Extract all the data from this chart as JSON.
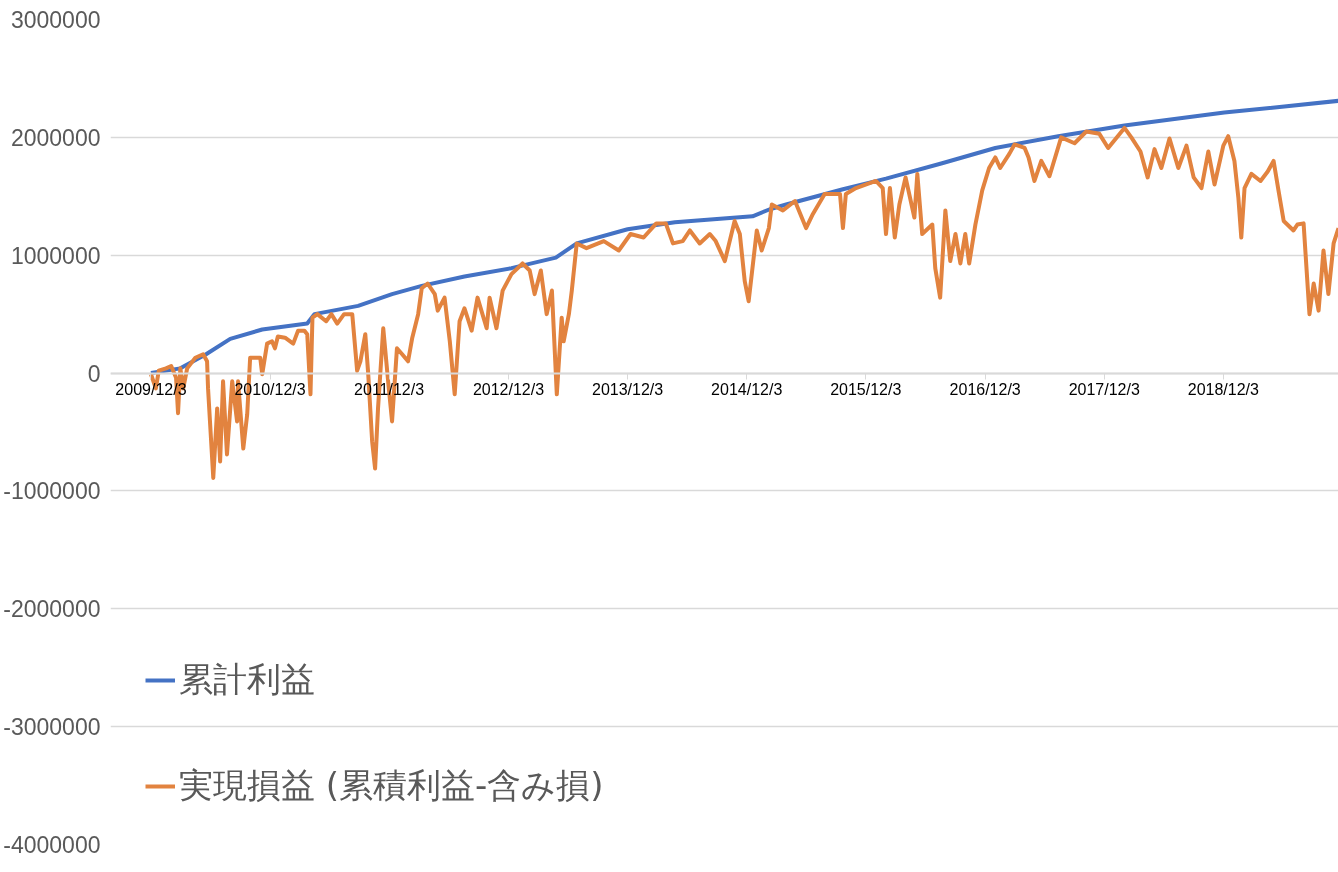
{
  "chart_data": {
    "type": "line",
    "xlim": [
      "2009-08-01",
      "2019-11-21"
    ],
    "ylim": [
      -4000000,
      3000000
    ],
    "xticks": [
      {
        "value": "2009-12-03",
        "label": "2009/12/3"
      },
      {
        "value": "2010-12-03",
        "label": "2010/12/3"
      },
      {
        "value": "2011-12-03",
        "label": "2011/12/3"
      },
      {
        "value": "2012-12-03",
        "label": "2012/12/3"
      },
      {
        "value": "2013-12-03",
        "label": "2013/12/3"
      },
      {
        "value": "2014-12-03",
        "label": "2014/12/3"
      },
      {
        "value": "2015-12-03",
        "label": "2015/12/3"
      },
      {
        "value": "2016-12-03",
        "label": "2016/12/3"
      },
      {
        "value": "2017-12-03",
        "label": "2017/12/3"
      },
      {
        "value": "2018-12-03",
        "label": "2018/12/3"
      }
    ],
    "yticks": [
      -4000000,
      -3000000,
      -2000000,
      -1000000,
      0,
      1000000,
      2000000,
      3000000
    ],
    "grid": "y",
    "legend": "bottom left",
    "series": [
      {
        "name": "累計利益",
        "color": "#4472c4",
        "x": [
          "2009-12-03",
          "2010-03-03",
          "2010-05-21",
          "2010-08-03",
          "2010-11-09",
          "2011-03-27",
          "2011-04-18",
          "2011-08-30",
          "2011-12-12",
          "2012-03-12",
          "2012-07-21",
          "2012-12-12",
          "2013-04-27",
          "2013-06-30",
          "2013-12-03",
          "2014-04-27",
          "2014-12-21",
          "2015-02-12",
          "2015-04-03",
          "2015-09-24",
          "2016-02-03",
          "2016-07-24",
          "2017-01-03",
          "2017-07-15",
          "2018-02-03",
          "2018-12-06",
          "2019-11-21"
        ],
        "values": [
          0,
          40000,
          160000,
          290000,
          370000,
          420000,
          500000,
          570000,
          670000,
          740000,
          820000,
          890000,
          980000,
          1100000,
          1220000,
          1280000,
          1330000,
          1390000,
          1430000,
          1560000,
          1650000,
          1780000,
          1910000,
          2010000,
          2100000,
          2210000,
          2310000
        ]
      },
      {
        "name": "実現損益 (累積利益-含み損)",
        "color": "#e2833f",
        "x": [
          "2009-12-03",
          "2009-12-18",
          "2009-12-27",
          "2010-01-18",
          "2010-02-03",
          "2010-02-18",
          "2010-02-24",
          "2010-03-03",
          "2010-03-12",
          "2010-03-24",
          "2010-04-18",
          "2010-05-12",
          "2010-05-24",
          "2010-05-27",
          "2010-06-12",
          "2010-06-24",
          "2010-07-03",
          "2010-07-12",
          "2010-07-24",
          "2010-08-09",
          "2010-08-24",
          "2010-08-27",
          "2010-09-12",
          "2010-09-24",
          "2010-10-03",
          "2010-11-03",
          "2010-11-09",
          "2010-11-24",
          "2010-12-09",
          "2010-12-18",
          "2010-12-27",
          "2011-01-18",
          "2011-02-12",
          "2011-02-27",
          "2011-03-18",
          "2011-03-27",
          "2011-04-06",
          "2011-04-12",
          "2011-04-27",
          "2011-05-24",
          "2011-06-09",
          "2011-06-27",
          "2011-07-18",
          "2011-08-12",
          "2011-08-27",
          "2011-09-06",
          "2011-09-21",
          "2011-09-30",
          "2011-10-12",
          "2011-10-21",
          "2011-10-30",
          "2011-11-15",
          "2011-11-30",
          "2011-12-12",
          "2011-12-27",
          "2012-01-12",
          "2012-01-30",
          "2012-02-12",
          "2012-03-01",
          "2012-03-12",
          "2012-03-30",
          "2012-04-21",
          "2012-04-30",
          "2012-05-21",
          "2012-06-06",
          "2012-06-21",
          "2012-07-06",
          "2012-07-21",
          "2012-08-12",
          "2012-08-30",
          "2012-09-27",
          "2012-10-06",
          "2012-10-27",
          "2012-11-15",
          "2012-12-12",
          "2013-01-15",
          "2013-02-06",
          "2013-02-21",
          "2013-03-12",
          "2013-03-30",
          "2013-04-15",
          "2013-04-30",
          "2013-05-15",
          "2013-05-21",
          "2013-06-06",
          "2013-06-15",
          "2013-06-30",
          "2013-07-30",
          "2013-09-21",
          "2013-11-06",
          "2013-12-12",
          "2014-01-21",
          "2014-03-01",
          "2014-03-30",
          "2014-04-21",
          "2014-05-21",
          "2014-06-12",
          "2014-07-12",
          "2014-08-12",
          "2014-08-30",
          "2014-09-27",
          "2014-10-27",
          "2014-11-12",
          "2014-11-27",
          "2014-12-09",
          "2015-01-03",
          "2015-01-18",
          "2015-02-09",
          "2015-02-18",
          "2015-03-24",
          "2015-04-30",
          "2015-06-03",
          "2015-06-24",
          "2015-07-30",
          "2015-09-15",
          "2015-09-24",
          "2015-10-03",
          "2015-11-03",
          "2016-01-03",
          "2016-01-24",
          "2016-02-03",
          "2016-02-15",
          "2016-03-01",
          "2016-03-15",
          "2016-04-03",
          "2016-04-30",
          "2016-05-09",
          "2016-05-24",
          "2016-06-24",
          "2016-07-03",
          "2016-07-18",
          "2016-08-03",
          "2016-08-18",
          "2016-09-03",
          "2016-09-18",
          "2016-10-03",
          "2016-10-15",
          "2016-11-03",
          "2016-11-24",
          "2016-12-15",
          "2017-01-03",
          "2017-01-18",
          "2017-02-15",
          "2017-03-03",
          "2017-04-03",
          "2017-04-15",
          "2017-05-03",
          "2017-05-24",
          "2017-06-18",
          "2017-07-24",
          "2017-09-03",
          "2017-10-09",
          "2017-11-18",
          "2017-12-15",
          "2018-02-03",
          "2018-02-24",
          "2018-03-24",
          "2018-04-15",
          "2018-05-06",
          "2018-05-27",
          "2018-06-21",
          "2018-07-18",
          "2018-08-12",
          "2018-09-03",
          "2018-09-27",
          "2018-10-18",
          "2018-11-06",
          "2018-12-03",
          "2018-12-18",
          "2019-01-06",
          "2019-01-18",
          "2019-01-27",
          "2019-02-06",
          "2019-02-27",
          "2019-03-27",
          "2019-04-18",
          "2019-05-06",
          "2019-05-21",
          "2019-06-06",
          "2019-07-06",
          "2019-07-18",
          "2019-08-06",
          "2019-08-24",
          "2019-09-06",
          "2019-09-21",
          "2019-10-06",
          "2019-10-21",
          "2019-11-06",
          "2019-11-21"
        ],
        "values": [
          -10000,
          -130000,
          20000,
          40000,
          60000,
          -40000,
          -340000,
          40000,
          -130000,
          40000,
          130000,
          160000,
          100000,
          -130000,
          -890000,
          -300000,
          -750000,
          -70000,
          -690000,
          -70000,
          -410000,
          -70000,
          -640000,
          -350000,
          130000,
          130000,
          -10000,
          250000,
          270000,
          210000,
          310000,
          300000,
          250000,
          360000,
          360000,
          330000,
          -180000,
          470000,
          500000,
          440000,
          500000,
          420000,
          500000,
          500000,
          20000,
          100000,
          330000,
          -10000,
          -580000,
          -810000,
          -300000,
          380000,
          -70000,
          -410000,
          210000,
          160000,
          100000,
          300000,
          500000,
          720000,
          760000,
          670000,
          530000,
          640000,
          270000,
          -180000,
          440000,
          550000,
          360000,
          640000,
          380000,
          640000,
          380000,
          700000,
          840000,
          930000,
          870000,
          670000,
          870000,
          500000,
          700000,
          -180000,
          470000,
          270000,
          500000,
          700000,
          1100000,
          1060000,
          1120000,
          1040000,
          1180000,
          1150000,
          1270000,
          1270000,
          1100000,
          1120000,
          1210000,
          1100000,
          1180000,
          1120000,
          950000,
          1290000,
          1180000,
          780000,
          610000,
          1210000,
          1040000,
          1230000,
          1430000,
          1380000,
          1460000,
          1230000,
          1350000,
          1520000,
          1520000,
          1230000,
          1520000,
          1570000,
          1630000,
          1570000,
          1180000,
          1570000,
          1150000,
          1430000,
          1660000,
          1320000,
          1690000,
          1180000,
          1260000,
          890000,
          640000,
          1380000,
          950000,
          1180000,
          930000,
          1180000,
          930000,
          1260000,
          1550000,
          1740000,
          1830000,
          1740000,
          1860000,
          1940000,
          1910000,
          1830000,
          1630000,
          1800000,
          1670000,
          2000000,
          1950000,
          2050000,
          2030000,
          1910000,
          2080000,
          2000000,
          1880000,
          1660000,
          1900000,
          1740000,
          1990000,
          1740000,
          1930000,
          1660000,
          1570000,
          1880000,
          1600000,
          1930000,
          2010000,
          1800000,
          1490000,
          1150000,
          1570000,
          1690000,
          1630000,
          1710000,
          1800000,
          1550000,
          1290000,
          1210000,
          1260000,
          1270000,
          500000,
          760000,
          530000,
          1040000,
          670000,
          1100000,
          1230000
        ]
      }
    ]
  }
}
